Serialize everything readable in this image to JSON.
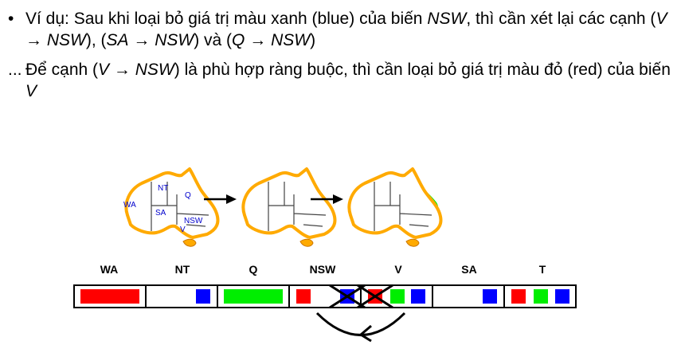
{
  "slide": {
    "bullet": "•",
    "line1": {
      "p1": "Ví dụ:  Sau khi loại bỏ giá trị màu xanh (blue) của biến ",
      "v1": "NSW",
      "p2": ", thì cần xét lại các cạnh (",
      "e1": "V",
      "a1": "→",
      "e1b": "NSW",
      "p3": "), (",
      "e2": "SA",
      "a2": "→",
      "e2b": "NSW",
      "p4": ") và (",
      "e3": "Q",
      "a3": "→",
      "e3b": "NSW",
      "p5": ")"
    },
    "ellipsis": "...",
    "line2": {
      "p1": " Để cạnh (",
      "e1": "V",
      "a1": "→",
      "e1b": "NSW",
      "p2": ") là phù hợp ràng buộc, thì cần loại bỏ giá trị màu đỏ (red) của biến ",
      "v1": "V"
    }
  },
  "map_labels": {
    "wa": "WA",
    "nt": "NT",
    "q": "Q",
    "sa": "SA",
    "nsw": "NSW",
    "v": "V"
  },
  "domain_table": {
    "headers": [
      "WA",
      "NT",
      "Q",
      "NSW",
      "V",
      "SA",
      "T"
    ]
  },
  "colors": {
    "red": "#ff0000",
    "green": "#00ee00",
    "blue": "#0000ff",
    "outline": "#ffaa00",
    "label": "#0000cc"
  }
}
